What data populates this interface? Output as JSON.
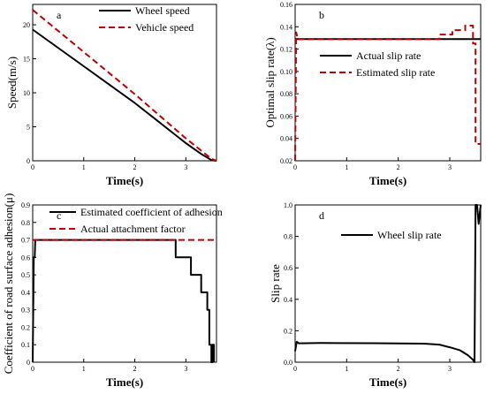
{
  "chart_data": [
    {
      "panel": "a",
      "type": "line",
      "xlabel": "Time(s)",
      "ylabel": "Speed(m/s)",
      "xlim": [
        0,
        3.6
      ],
      "ylim": [
        0,
        23
      ],
      "xticks": [
        0,
        1,
        2,
        3
      ],
      "yticks": [
        0,
        5,
        10,
        15,
        20
      ],
      "legend_position": "top-right",
      "series": [
        {
          "name": "Wheel speed",
          "style": "solid",
          "color": "#000000",
          "points": [
            [
              0,
              19.3
            ],
            [
              1,
              13.9
            ],
            [
              2,
              8.5
            ],
            [
              3,
              2.6
            ],
            [
              3.3,
              1.0
            ],
            [
              3.5,
              0.1
            ],
            [
              3.6,
              0
            ]
          ]
        },
        {
          "name": "Vehicle speed",
          "style": "dashed",
          "color": "#c00000",
          "points": [
            [
              0,
              22.2
            ],
            [
              1,
              16.0
            ],
            [
              2,
              9.8
            ],
            [
              3,
              3.3
            ],
            [
              3.3,
              1.5
            ],
            [
              3.5,
              0.3
            ],
            [
              3.6,
              0
            ]
          ]
        }
      ]
    },
    {
      "panel": "b",
      "type": "line",
      "xlabel": "Time(s)",
      "ylabel": "Optimal slip rate(λ)",
      "xlim": [
        0,
        3.6
      ],
      "ylim": [
        0.02,
        0.16
      ],
      "xticks": [
        0,
        1,
        2,
        3
      ],
      "yticks": [
        0.02,
        0.04,
        0.06,
        0.08,
        0.1,
        0.12,
        0.14,
        0.16
      ],
      "ytick_labels": [
        "0.02",
        "0.04",
        "0.06",
        "0.08",
        "0.10",
        "0.12",
        "0.14",
        "0.16"
      ],
      "legend_position": "center-right",
      "series": [
        {
          "name": "Actual slip rate",
          "style": "solid",
          "color": "#000000",
          "points": [
            [
              0,
              0.129
            ],
            [
              3.6,
              0.129
            ]
          ]
        },
        {
          "name": "Estimated slip rate",
          "style": "dashed",
          "color": "#c00000",
          "points": [
            [
              0,
              0.02
            ],
            [
              0.02,
              0.135
            ],
            [
              0.05,
              0.129
            ],
            [
              2.8,
              0.129
            ],
            [
              2.8,
              0.133
            ],
            [
              3.05,
              0.133
            ],
            [
              3.05,
              0.137
            ],
            [
              3.3,
              0.137
            ],
            [
              3.3,
              0.141
            ],
            [
              3.45,
              0.141
            ],
            [
              3.45,
              0.125
            ],
            [
              3.5,
              0.125
            ],
            [
              3.5,
              0.035
            ],
            [
              3.6,
              0.035
            ]
          ]
        }
      ]
    },
    {
      "panel": "c",
      "type": "line",
      "xlabel": "Time(s)",
      "ylabel": "Coefficient of road surface adhesion(μ)",
      "xlim": [
        0,
        3.6
      ],
      "ylim": [
        0,
        0.9
      ],
      "xticks": [
        0,
        1,
        2,
        3
      ],
      "yticks": [
        0,
        0.1,
        0.2,
        0.3,
        0.4,
        0.5,
        0.6,
        0.7,
        0.8,
        0.9
      ],
      "ytick_labels": [
        "0",
        "0.1",
        "0.2",
        "0.3",
        "0.4",
        "0.5",
        "0.6",
        "0.7",
        "0.8",
        "0.9"
      ],
      "legend_position": "top-right",
      "series": [
        {
          "name": "Estimated coefficient of adhesion",
          "style": "solid",
          "color": "#000000",
          "points": [
            [
              0,
              0
            ],
            [
              0.02,
              0.6
            ],
            [
              0.04,
              0.6
            ],
            [
              0.05,
              0.7
            ],
            [
              2.8,
              0.7
            ],
            [
              2.8,
              0.6
            ],
            [
              3.1,
              0.6
            ],
            [
              3.1,
              0.5
            ],
            [
              3.3,
              0.5
            ],
            [
              3.3,
              0.4
            ],
            [
              3.42,
              0.4
            ],
            [
              3.42,
              0.3
            ],
            [
              3.46,
              0.3
            ],
            [
              3.46,
              0.1
            ],
            [
              3.5,
              0.1
            ],
            [
              3.5,
              0.0
            ],
            [
              3.52,
              0.0
            ],
            [
              3.52,
              0.1
            ],
            [
              3.55,
              0.1
            ],
            [
              3.55,
              0
            ]
          ]
        },
        {
          "name": "Actual attachment factor",
          "style": "dashed",
          "color": "#c00000",
          "points": [
            [
              0,
              0.7
            ],
            [
              3.6,
              0.7
            ]
          ]
        }
      ]
    },
    {
      "panel": "d",
      "type": "line",
      "xlabel": "Time(s)",
      "ylabel": "Slip rate",
      "xlim": [
        0,
        3.6
      ],
      "ylim": [
        0,
        1.0
      ],
      "xticks": [
        0,
        1,
        2,
        3
      ],
      "yticks": [
        0,
        0.2,
        0.4,
        0.6,
        0.8,
        1.0
      ],
      "ytick_labels": [
        "0.0",
        "0.2",
        "0.4",
        "0.6",
        "0.8",
        "1.0"
      ],
      "legend_position": "top-center",
      "series": [
        {
          "name": "Wheel slip rate",
          "style": "solid",
          "color": "#000000",
          "points": [
            [
              0,
              0.07
            ],
            [
              0.03,
              0.13
            ],
            [
              0.07,
              0.12
            ],
            [
              0.5,
              0.122
            ],
            [
              1.5,
              0.121
            ],
            [
              2.5,
              0.118
            ],
            [
              2.8,
              0.112
            ],
            [
              3.0,
              0.095
            ],
            [
              3.2,
              0.075
            ],
            [
              3.35,
              0.045
            ],
            [
              3.45,
              0.015
            ],
            [
              3.48,
              0.0
            ],
            [
              3.5,
              1.0
            ],
            [
              3.53,
              1.0
            ],
            [
              3.56,
              0.88
            ],
            [
              3.6,
              1.0
            ]
          ]
        }
      ]
    }
  ]
}
